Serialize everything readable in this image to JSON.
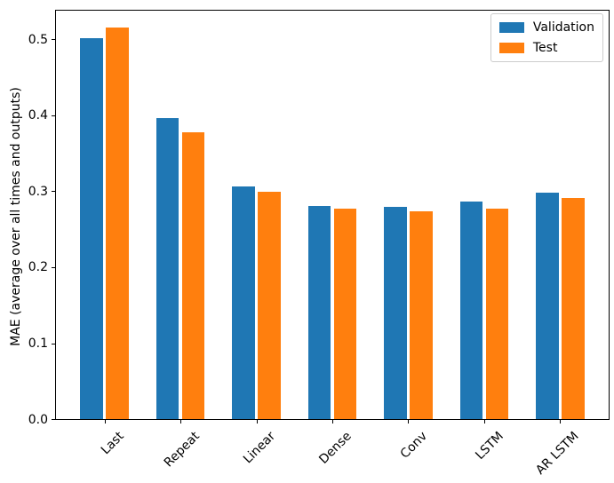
{
  "chart_data": {
    "type": "bar",
    "title": "",
    "xlabel": "",
    "ylabel": "MAE (average over all times and outputs)",
    "categories": [
      "Last",
      "Repeat",
      "Linear",
      "Dense",
      "Conv",
      "LSTM",
      "AR LSTM"
    ],
    "series": [
      {
        "name": "Validation",
        "color": "#1f77b4",
        "values": [
          0.502,
          0.396,
          0.306,
          0.281,
          0.28,
          0.286,
          0.298
        ]
      },
      {
        "name": "Test",
        "color": "#ff7f0e",
        "values": [
          0.516,
          0.378,
          0.299,
          0.277,
          0.274,
          0.277,
          0.291
        ]
      }
    ],
    "ytick_labels": [
      "0.0",
      "0.1",
      "0.2",
      "0.3",
      "0.4",
      "0.5"
    ],
    "yticks": [
      0.0,
      0.1,
      0.2,
      0.3,
      0.4,
      0.5
    ],
    "ylim": [
      0,
      0.539
    ],
    "xlim": [
      -0.652,
      6.652
    ],
    "bar_width": 0.3,
    "bar_offset": 0.17,
    "xtick_rotation": 45,
    "grid": false,
    "legend_position": "upper right",
    "spine_color": "#000000",
    "background_color": "#ffffff"
  }
}
